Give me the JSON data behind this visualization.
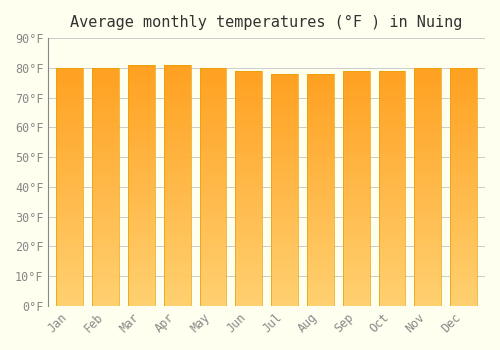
{
  "title": "Average monthly temperatures (°F ) in Nuing",
  "months": [
    "Jan",
    "Feb",
    "Mar",
    "Apr",
    "May",
    "Jun",
    "Jul",
    "Aug",
    "Sep",
    "Oct",
    "Nov",
    "Dec"
  ],
  "values": [
    80,
    80,
    81,
    81,
    80,
    79,
    78,
    78,
    79,
    79,
    80,
    80
  ],
  "ylim": [
    0,
    90
  ],
  "yticks": [
    0,
    10,
    20,
    30,
    40,
    50,
    60,
    70,
    80,
    90
  ],
  "ytick_labels": [
    "0°F",
    "10°F",
    "20°F",
    "30°F",
    "40°F",
    "50°F",
    "60°F",
    "70°F",
    "80°F",
    "90°F"
  ],
  "bar_color_top": "#FFA500",
  "bar_color_bottom": "#FFD080",
  "bar_edge_color": "#E8A000",
  "background_color": "#FFFFF0",
  "grid_color": "#CCCCCC",
  "title_fontsize": 11,
  "tick_fontsize": 8.5,
  "font_family": "monospace"
}
